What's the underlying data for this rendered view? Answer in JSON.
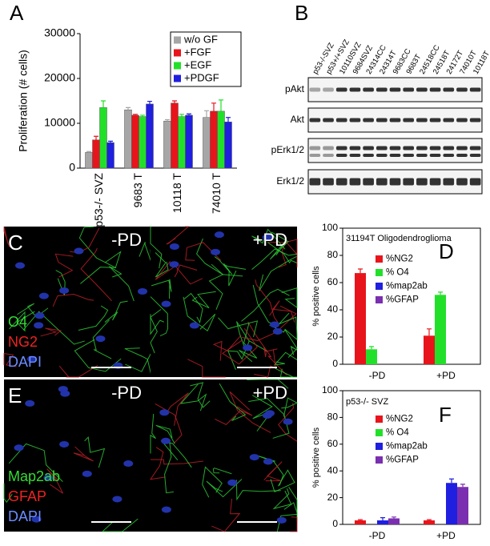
{
  "chart_data": [
    {
      "type": "bar",
      "panel": "A",
      "ylabel": "Proliferation (# cells)",
      "categories": [
        "p53-/- SVZ",
        "9683 T",
        "10118 T",
        "74010 T"
      ],
      "series": [
        {
          "name": "w/o GF",
          "color": "#a6a6a6",
          "values": [
            3500,
            13000,
            10500,
            11300
          ],
          "errors": [
            200,
            500,
            300,
            1500
          ]
        },
        {
          "name": "+FGF",
          "color": "#e8141c",
          "values": [
            6300,
            11800,
            14500,
            12700
          ],
          "errors": [
            800,
            200,
            500,
            1800
          ]
        },
        {
          "name": "+EGF",
          "color": "#22e02a",
          "values": [
            13500,
            11500,
            11500,
            12700
          ],
          "errors": [
            1500,
            300,
            500,
            2500
          ]
        },
        {
          "name": "+PDGF",
          "color": "#1f1fe0",
          "values": [
            5700,
            14300,
            11800,
            10300
          ],
          "errors": [
            300,
            600,
            300,
            1000
          ]
        }
      ],
      "ylim": [
        0,
        30000
      ],
      "yticks": [
        0,
        10000,
        20000,
        30000
      ],
      "legend": "upper right"
    },
    {
      "type": "bar",
      "panel": "D",
      "title": "31194T Oligodendroglioma",
      "ylabel": "% positive cells",
      "categories": [
        "-PD",
        "+PD"
      ],
      "series": [
        {
          "name": "%NG2",
          "color": "#e8141c",
          "values": [
            67,
            21
          ],
          "errors": [
            3,
            5
          ]
        },
        {
          "name": "% O4",
          "color": "#22e02a",
          "values": [
            11,
            51
          ],
          "errors": [
            2,
            2
          ]
        },
        {
          "name": "%map2ab",
          "color": "#1f1fe0",
          "values": [
            null,
            null
          ],
          "errors": [
            null,
            null
          ]
        },
        {
          "name": "%GFAP",
          "color": "#7a2fb0",
          "values": [
            null,
            null
          ],
          "errors": [
            null,
            null
          ]
        }
      ],
      "ylim": [
        0,
        100
      ],
      "yticks": [
        0,
        20,
        40,
        60,
        80,
        100
      ],
      "legend": "upper right"
    },
    {
      "type": "bar",
      "panel": "F",
      "title": "p53-/- SVZ",
      "ylabel": "% positive cells",
      "categories": [
        "-PD",
        "+PD"
      ],
      "series": [
        {
          "name": "%NG2",
          "color": "#e8141c",
          "values": [
            3,
            3
          ],
          "errors": [
            0.5,
            0.5
          ]
        },
        {
          "name": "% O4",
          "color": "#22e02a",
          "values": [
            null,
            null
          ],
          "errors": [
            null,
            null
          ]
        },
        {
          "name": "%map2ab",
          "color": "#1f1fe0",
          "values": [
            3,
            31
          ],
          "errors": [
            2,
            3
          ]
        },
        {
          "name": "%GFAP",
          "color": "#7a2fb0",
          "values": [
            4.5,
            28
          ],
          "errors": [
            1,
            2
          ]
        }
      ],
      "ylim": [
        0,
        100
      ],
      "yticks": [
        0,
        20,
        40,
        60,
        80,
        100
      ],
      "legend": "upper right"
    }
  ],
  "blot": {
    "panel": "B",
    "lanes": [
      "p53-/-SVZ",
      "p53+/+SVZ",
      "10110SVZ",
      "9684SVZ",
      "24314CC",
      "24314T",
      "9683CC",
      "9683T",
      "24518CC",
      "24518T",
      "24172T",
      "74010T",
      "10118T"
    ],
    "rows": [
      "pAkt",
      "Akt",
      "pErk1/2",
      "Erk1/2"
    ]
  },
  "micrographs": [
    {
      "panel": "C",
      "conditions": [
        "-PD",
        "+PD"
      ],
      "stains": [
        "O4",
        "NG2",
        "DAPI"
      ]
    },
    {
      "panel": "E",
      "conditions": [
        "-PD",
        "+PD"
      ],
      "stains": [
        "Map2ab",
        "GFAP",
        "DAPI"
      ]
    }
  ]
}
